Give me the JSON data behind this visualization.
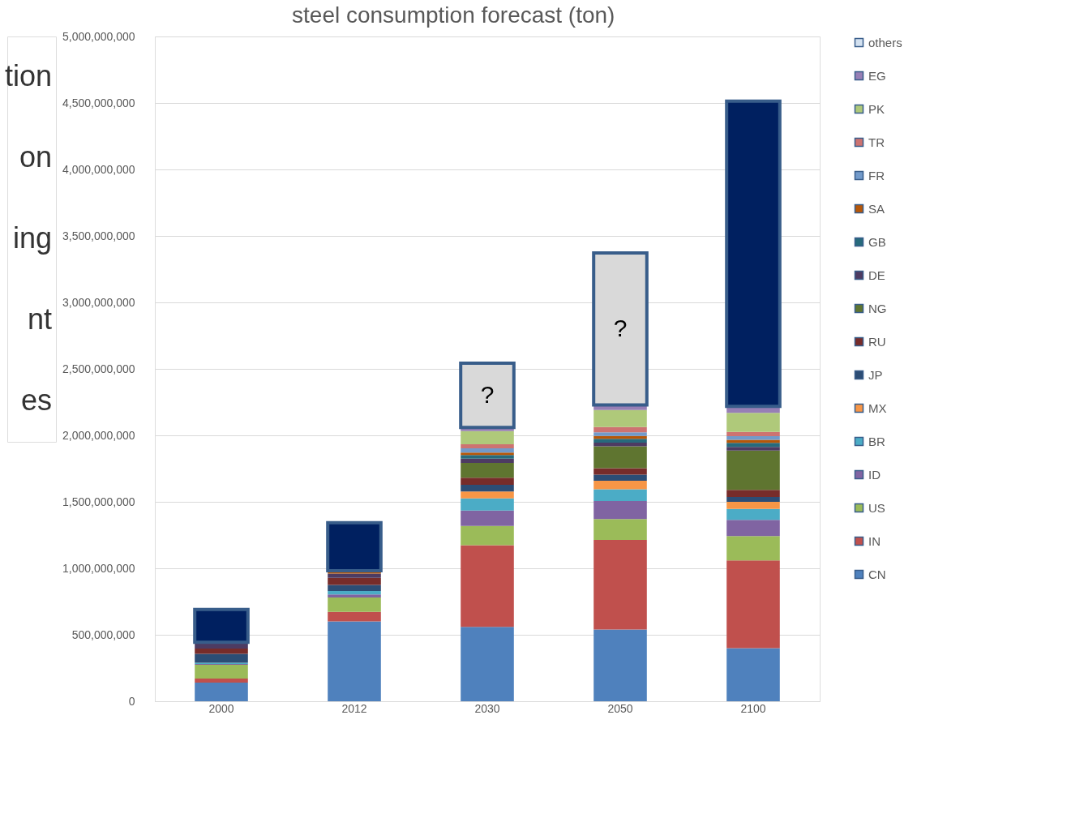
{
  "chart_data": {
    "type": "bar",
    "title": "steel consumption forecast (ton)",
    "stacked": true,
    "legend": "right",
    "grid": "y",
    "categories": [
      "2000",
      "2012",
      "2030",
      "2050",
      "2100"
    ],
    "ylim": [
      0,
      5000000000
    ],
    "yticks": [
      0,
      {
        "value": 500000000,
        "label": "500,000,000"
      },
      {
        "value": 1000000000,
        "label": "1,000,000,000"
      },
      {
        "value": 1500000000,
        "label": "1,500,000,000"
      },
      {
        "value": 2000000000,
        "label": "2,000,000,000"
      },
      {
        "value": 2500000000,
        "label": "2,500,000,000"
      },
      {
        "value": 3000000000,
        "label": "3,000,000,000"
      },
      {
        "value": 3500000000,
        "label": "3,500,000,000"
      },
      {
        "value": 4000000000,
        "label": "4,000,000,000"
      },
      {
        "value": 4500000000,
        "label": "4,500,000,000"
      },
      {
        "value": 5000000000,
        "label": "5,000,000,000"
      }
    ],
    "annotations": [
      "tion",
      "on",
      "ing",
      "nt",
      "es"
    ],
    "series": [
      {
        "name": "CN",
        "color": "#4f81bd",
        "values": [
          140000000,
          600000000,
          560000000,
          539000000,
          399000000
        ]
      },
      {
        "name": "IN",
        "color": "#c0504d",
        "values": [
          30000000,
          72000000,
          614000000,
          674000000,
          661000000
        ]
      },
      {
        "name": "US",
        "color": "#9bbb59",
        "values": [
          105000000,
          108000000,
          144000000,
          158000000,
          183000000
        ]
      },
      {
        "name": "ID",
        "color": "#8064a2",
        "values": [
          5000000,
          23000000,
          116000000,
          135000000,
          122000000
        ]
      },
      {
        "name": "BR",
        "color": "#4bacc6",
        "values": [
          10000000,
          27000000,
          92000000,
          88000000,
          81000000
        ]
      },
      {
        "name": "MX",
        "color": "#f79646",
        "values": [
          null,
          null,
          52000000,
          65000000,
          54000000
        ]
      },
      {
        "name": "JP",
        "color": "#2c4d75",
        "values": [
          67000000,
          45000000,
          50000000,
          45000000,
          36000000
        ]
      },
      {
        "name": "RU",
        "color": "#772c2a",
        "values": [
          40000000,
          54000000,
          54000000,
          49000000,
          54000000
        ]
      },
      {
        "name": "NG",
        "color": "#5f7530",
        "values": [
          null,
          null,
          111000000,
          165000000,
          296000000
        ]
      },
      {
        "name": "DE",
        "color": "#4d3b62",
        "values": [
          47000000,
          31000000,
          32000000,
          27000000,
          27000000
        ]
      },
      {
        "name": "GB",
        "color": "#276a7c",
        "values": [
          null,
          null,
          27000000,
          29000000,
          30000000
        ]
      },
      {
        "name": "SA",
        "color": "#b65708",
        "values": [
          null,
          22000000,
          18000000,
          22000000,
          24000000
        ]
      },
      {
        "name": "FR",
        "color": "#729aca",
        "values": [
          null,
          null,
          32000000,
          27000000,
          27000000
        ]
      },
      {
        "name": "TR",
        "color": "#cd7371",
        "values": [
          null,
          null,
          31000000,
          39000000,
          32000000
        ]
      },
      {
        "name": "PK",
        "color": "#afc97a",
        "values": [
          null,
          null,
          99000000,
          129000000,
          143000000
        ]
      },
      {
        "name": "EG",
        "color": "#977fb5",
        "values": [
          null,
          null,
          27000000,
          38000000,
          49000000
        ]
      },
      {
        "name": "others",
        "color": "#d3e1f0",
        "values": [
          null,
          null,
          null,
          null,
          null
        ]
      },
      {
        "color": "#002060",
        "values": [
          247000000,
          361000000,
          null,
          null,
          2296000000
        ]
      },
      {
        "color": "#d9d9d9",
        "values": [
          null,
          null,
          483000000,
          1143000000,
          null
        ],
        "value_labels": [
          null,
          null,
          "?",
          "?",
          null
        ]
      }
    ]
  }
}
